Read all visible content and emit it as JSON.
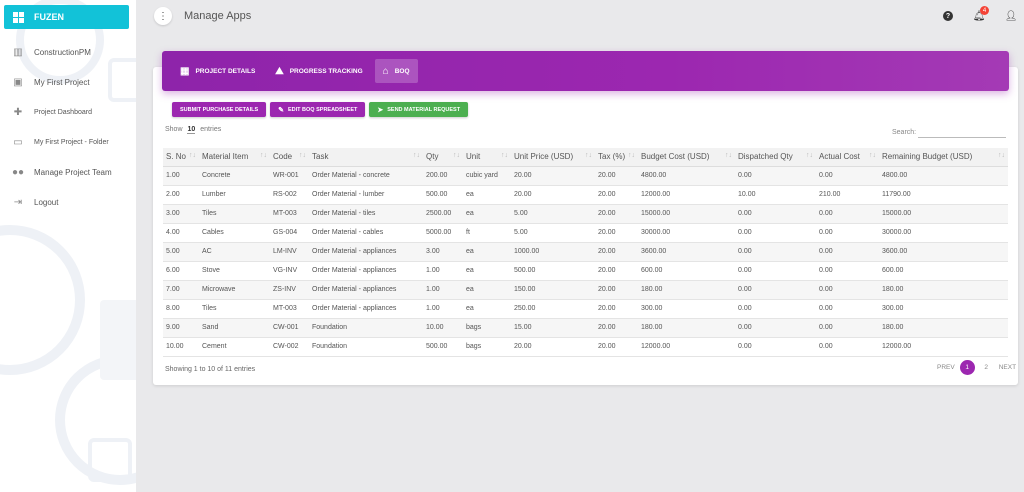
{
  "brand": "FUZEN",
  "nav": [
    {
      "label": "ConstructionPM",
      "icon": "bar-chart-icon"
    },
    {
      "label": "My First Project",
      "icon": "briefcase-icon"
    },
    {
      "label": "Project Dashboard",
      "icon": "puzzle-icon"
    },
    {
      "label": "My First Project - Folder",
      "icon": "folder-icon"
    },
    {
      "label": "Manage Project Team",
      "icon": "people-icon"
    },
    {
      "label": "Logout",
      "icon": "logout-icon"
    }
  ],
  "page_title": "Manage Apps",
  "notifications_count": "4",
  "tabs": [
    "PROJECT DETAILS",
    "PROGRESS TRACKING",
    "BOQ"
  ],
  "actions": [
    "SUBMIT PURCHASE DETAILS",
    "EDIT BOQ SPREADSHEET",
    "SEND MATERIAL REQUEST"
  ],
  "show_label": "Show",
  "show_value": "10",
  "entries_label": "entries",
  "search_label": "Search:",
  "columns": [
    "S. No",
    "Material Item",
    "Code",
    "Task",
    "Qty",
    "Unit",
    "Unit Price (USD)",
    "Tax (%)",
    "Budget Cost (USD)",
    "Dispatched Qty",
    "Actual Cost",
    "Remaining Budget (USD)"
  ],
  "rows": [
    [
      "1.00",
      "Concrete",
      "WR-001",
      "Order Material - concrete",
      "200.00",
      "cubic yard",
      "20.00",
      "20.00",
      "4800.00",
      "0.00",
      "0.00",
      "4800.00"
    ],
    [
      "2.00",
      "Lumber",
      "RS-002",
      "Order Material - lumber",
      "500.00",
      "ea",
      "20.00",
      "20.00",
      "12000.00",
      "10.00",
      "210.00",
      "11790.00"
    ],
    [
      "3.00",
      "Tiles",
      "MT-003",
      "Order Material - tiles",
      "2500.00",
      "ea",
      "5.00",
      "20.00",
      "15000.00",
      "0.00",
      "0.00",
      "15000.00"
    ],
    [
      "4.00",
      "Cables",
      "GS-004",
      "Order Material - cables",
      "5000.00",
      "ft",
      "5.00",
      "20.00",
      "30000.00",
      "0.00",
      "0.00",
      "30000.00"
    ],
    [
      "5.00",
      "AC",
      "LM-INV",
      "Order Material - appliances",
      "3.00",
      "ea",
      "1000.00",
      "20.00",
      "3600.00",
      "0.00",
      "0.00",
      "3600.00"
    ],
    [
      "6.00",
      "Stove",
      "VG-INV",
      "Order Material - appliances",
      "1.00",
      "ea",
      "500.00",
      "20.00",
      "600.00",
      "0.00",
      "0.00",
      "600.00"
    ],
    [
      "7.00",
      "Microwave",
      "ZS-INV",
      "Order Material - appliances",
      "1.00",
      "ea",
      "150.00",
      "20.00",
      "180.00",
      "0.00",
      "0.00",
      "180.00"
    ],
    [
      "8.00",
      "Tiles",
      "MT-003",
      "Order Material - appliances",
      "1.00",
      "ea",
      "250.00",
      "20.00",
      "300.00",
      "0.00",
      "0.00",
      "300.00"
    ],
    [
      "9.00",
      "Sand",
      "CW-001",
      "Foundation",
      "10.00",
      "bags",
      "15.00",
      "20.00",
      "180.00",
      "0.00",
      "0.00",
      "180.00"
    ],
    [
      "10.00",
      "Cement",
      "CW-002",
      "Foundation",
      "500.00",
      "bags",
      "20.00",
      "20.00",
      "12000.00",
      "0.00",
      "0.00",
      "12000.00"
    ]
  ],
  "info": "Showing 1 to 10 of 11 entries",
  "pager": {
    "prev": "PREV",
    "pages": [
      "1",
      "2"
    ],
    "next": "NEXT"
  }
}
